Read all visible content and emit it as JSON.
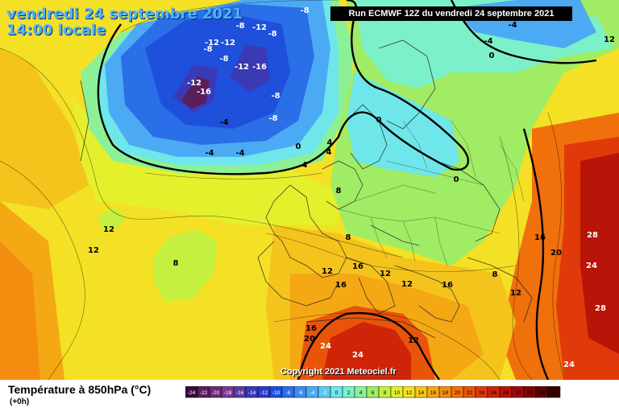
{
  "header": {
    "date_line": "vendredi 24 septembre 2021",
    "time_line": "14:00 locale",
    "run_info": "Run ECMWF 12Z du vendredi 24 septembre 2021"
  },
  "copyright": "Copyright 2021 Meteociel.fr",
  "legend": {
    "title": "Température à 850hPa (°C)",
    "subtitle": "(+0h)",
    "scale_values": [
      "-24",
      "-22",
      "-20",
      "-18",
      "-16",
      "-14",
      "-12",
      "-10",
      "-8",
      "-6",
      "-4",
      "-2",
      "0",
      "2",
      "4",
      "6",
      "8",
      "10",
      "12",
      "14",
      "16",
      "18",
      "20",
      "22",
      "24",
      "26",
      "28",
      "30",
      "32",
      "34",
      "36"
    ],
    "scale_colors": [
      "#3a0c3a",
      "#5a1e5a",
      "#6e2a78",
      "#7c3a90",
      "#5a3aa0",
      "#3a3ab4",
      "#2a3ac8",
      "#1e50dc",
      "#2a6ee8",
      "#3c8cf0",
      "#4caaf4",
      "#5ec8f4",
      "#6ee6ea",
      "#7cf0c8",
      "#8cf096",
      "#a0ec64",
      "#c4f040",
      "#e4f02c",
      "#f4e024",
      "#f4c41c",
      "#f4a814",
      "#f48c10",
      "#f0700c",
      "#e8540a",
      "#e03a0a",
      "#d02408",
      "#b81408",
      "#a00a08",
      "#800608",
      "#5a0404",
      "#3a0202"
    ]
  },
  "isotherm_labels": [
    {
      "text": "-8"
    },
    {
      "text": "-12"
    },
    {
      "text": "-8"
    },
    {
      "text": "-12"
    },
    {
      "text": "-8"
    },
    {
      "text": "-12"
    },
    {
      "text": "-8"
    },
    {
      "text": "-12"
    },
    {
      "text": "-16"
    },
    {
      "text": "-12"
    },
    {
      "text": "-16"
    },
    {
      "text": "-8"
    },
    {
      "text": "-8"
    },
    {
      "text": "-4"
    },
    {
      "text": "-4"
    },
    {
      "text": "-4"
    },
    {
      "text": "0"
    },
    {
      "text": "4"
    },
    {
      "text": "4"
    },
    {
      "text": "0"
    },
    {
      "text": "0"
    },
    {
      "text": "12"
    },
    {
      "text": "12"
    },
    {
      "text": "8"
    },
    {
      "text": "8"
    },
    {
      "text": "8"
    },
    {
      "text": "16"
    },
    {
      "text": "12"
    },
    {
      "text": "12"
    },
    {
      "text": "16"
    },
    {
      "text": "12"
    },
    {
      "text": "16"
    },
    {
      "text": "20"
    },
    {
      "text": "24"
    },
    {
      "text": "24"
    },
    {
      "text": "12"
    },
    {
      "text": "16"
    },
    {
      "text": "20"
    },
    {
      "text": "28"
    },
    {
      "text": "24"
    },
    {
      "text": "28"
    },
    {
      "text": "24"
    },
    {
      "text": "16"
    },
    {
      "text": "12"
    },
    {
      "text": "8"
    },
    {
      "text": "-4"
    },
    {
      "text": "-4"
    },
    {
      "text": "0"
    },
    {
      "text": "12"
    },
    {
      "text": "4"
    },
    {
      "text": "-8"
    }
  ]
}
